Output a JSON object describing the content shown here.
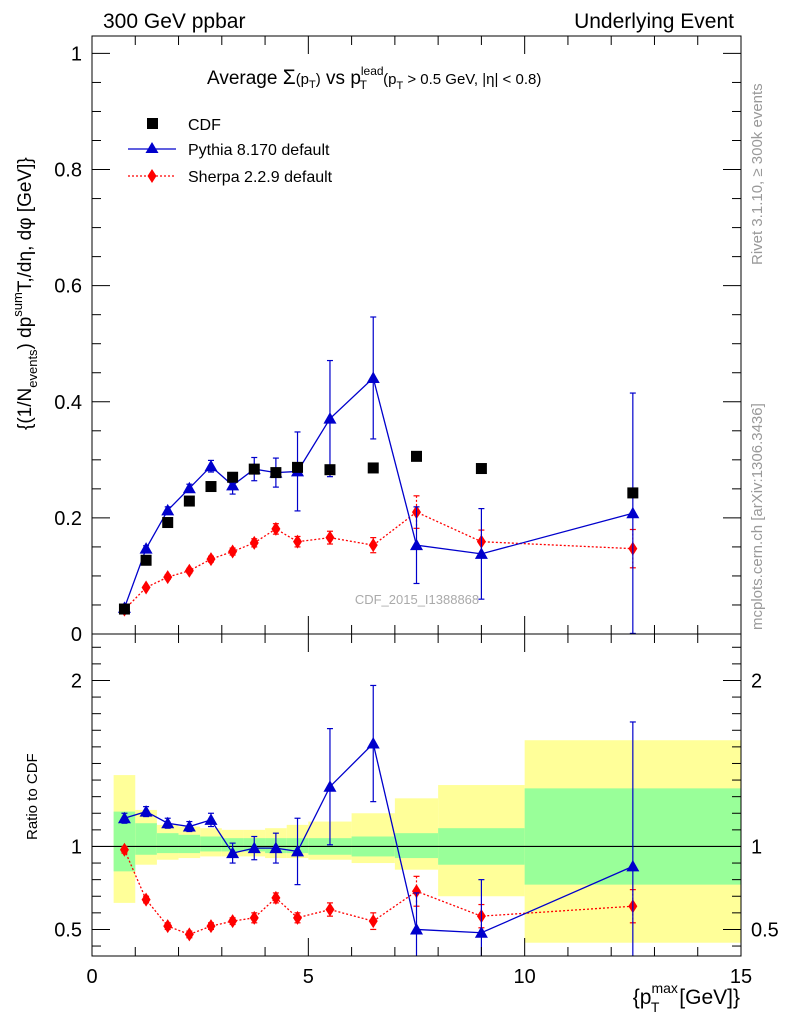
{
  "header": {
    "left_label": "300 GeV ppbar",
    "right_label": "Underlying Event"
  },
  "side_labels": {
    "rivet": "Rivet 3.1.10, ≥ 300k events",
    "mcplots": "mcplots.cern.ch [arXiv:1306.3436]"
  },
  "watermark": "CDF_2015_I1388868",
  "chart_data": [
    {
      "type": "scatter",
      "title": {
        "prefix": "Average ",
        "sigma": "Σ",
        "paren": "(p",
        "paren_sub": "T",
        "paren_end": ")",
        "vs": " vs p",
        "vs_sup": "lead",
        "vs_sub": "T",
        "cut1": " (p",
        "cut1_sub": "T",
        "cut2": " > 0.5 GeV, |η| < 0.8)"
      },
      "ylabel": {
        "part1": "{(1/N",
        "part1_sub": "events",
        "part2": ") dp",
        "part2_sup": "sum",
        "part3": "T,/dη, dφ [GeV]}"
      },
      "xlim": [
        0,
        15
      ],
      "ylim": [
        0,
        1.03
      ],
      "yticks": [
        0,
        0.2,
        0.4,
        0.6,
        0.8,
        1
      ],
      "ytick_labels": [
        "0",
        "0.2",
        "0.4",
        "0.6",
        "0.8",
        "1"
      ],
      "legend_position": "top-left",
      "series": [
        {
          "name": "CDF",
          "color": "#000000",
          "marker": "square",
          "x": [
            0.75,
            1.25,
            1.75,
            2.25,
            2.75,
            3.25,
            3.75,
            4.25,
            4.75,
            5.5,
            6.5,
            7.5,
            9.0,
            12.5
          ],
          "y": [
            0.043,
            0.127,
            0.192,
            0.229,
            0.254,
            0.27,
            0.284,
            0.278,
            0.287,
            0.283,
            0.286,
            0.306,
            0.285,
            0.243
          ]
        },
        {
          "name": "Pythia 8.170 default",
          "color": "#0000cc",
          "marker": "triangle",
          "line": "solid",
          "x": [
            0.75,
            1.25,
            1.75,
            2.25,
            2.75,
            3.25,
            3.75,
            4.25,
            4.75,
            5.5,
            6.5,
            7.5,
            9.0,
            12.5
          ],
          "y": [
            0.045,
            0.147,
            0.213,
            0.251,
            0.289,
            0.256,
            0.284,
            0.278,
            0.28,
            0.371,
            0.441,
            0.153,
            0.138,
            0.208
          ],
          "err": [
            0.003,
            0.005,
            0.006,
            0.007,
            0.01,
            0.015,
            0.02,
            0.025,
            0.068,
            0.1,
            0.105,
            0.066,
            0.078,
            0.207
          ]
        },
        {
          "name": "Sherpa 2.2.9 default",
          "color": "#ff0000",
          "marker": "diamond",
          "line": "dotted",
          "x": [
            0.75,
            1.25,
            1.75,
            2.25,
            2.75,
            3.25,
            3.75,
            4.25,
            4.75,
            5.5,
            6.5,
            7.5,
            9.0,
            12.5
          ],
          "y": [
            0.042,
            0.08,
            0.098,
            0.109,
            0.129,
            0.142,
            0.157,
            0.181,
            0.159,
            0.166,
            0.153,
            0.21,
            0.159,
            0.147
          ],
          "err": [
            0.002,
            0.003,
            0.004,
            0.004,
            0.005,
            0.006,
            0.007,
            0.009,
            0.009,
            0.011,
            0.013,
            0.028,
            0.02,
            0.033
          ]
        }
      ]
    },
    {
      "type": "scatter",
      "ylabel": "Ratio to CDF",
      "xlabel": {
        "part1": "{p",
        "part1_sup": "max",
        "part1_sub": "T",
        "part2": " [GeV]}"
      },
      "xlim": [
        0,
        15
      ],
      "ylim": [
        0.34,
        2.28
      ],
      "xticks": [
        0,
        5,
        10,
        15
      ],
      "xtick_labels": [
        "0",
        "5",
        "10",
        "15"
      ],
      "yticks": [
        0.5,
        1,
        2
      ],
      "ytick_labels": [
        "0.5",
        "1",
        "2"
      ],
      "reference_line": 1,
      "bands": {
        "bin_edges": [
          0.5,
          1.0,
          1.5,
          2.0,
          2.5,
          3.0,
          3.5,
          4.0,
          4.5,
          5.0,
          6.0,
          7.0,
          8.0,
          10.0,
          15.0
        ],
        "inner_color": "#99ff99",
        "outer_color": "#ffff99",
        "inner": [
          [
            0.85,
            1.21
          ],
          [
            0.95,
            1.14
          ],
          [
            0.96,
            1.08
          ],
          [
            0.96,
            1.07
          ],
          [
            0.97,
            1.06
          ],
          [
            0.97,
            1.05
          ],
          [
            0.97,
            1.05
          ],
          [
            0.96,
            1.05
          ],
          [
            0.96,
            1.05
          ],
          [
            0.95,
            1.05
          ],
          [
            0.94,
            1.06
          ],
          [
            0.93,
            1.08
          ],
          [
            0.89,
            1.11
          ],
          [
            0.77,
            1.35
          ]
        ],
        "outer": [
          [
            0.66,
            1.43
          ],
          [
            0.89,
            1.22
          ],
          [
            0.92,
            1.13
          ],
          [
            0.93,
            1.12
          ],
          [
            0.94,
            1.11
          ],
          [
            0.94,
            1.1
          ],
          [
            0.94,
            1.1
          ],
          [
            0.93,
            1.11
          ],
          [
            0.93,
            1.13
          ],
          [
            0.92,
            1.15
          ],
          [
            0.9,
            1.2
          ],
          [
            0.86,
            1.29
          ],
          [
            0.7,
            1.37
          ],
          [
            0.42,
            1.64
          ]
        ]
      },
      "series": [
        {
          "name": "Pythia 8.170 default",
          "color": "#0000cc",
          "marker": "triangle",
          "line": "solid",
          "x": [
            0.75,
            1.25,
            1.75,
            2.25,
            2.75,
            3.25,
            3.75,
            4.25,
            4.75,
            5.5,
            6.5,
            7.5,
            9.0,
            12.5
          ],
          "y": [
            1.17,
            1.21,
            1.14,
            1.12,
            1.16,
            0.96,
            0.99,
            0.99,
            0.97,
            1.36,
            1.62,
            0.5,
            0.48,
            0.88
          ],
          "err": [
            0.03,
            0.03,
            0.03,
            0.03,
            0.04,
            0.06,
            0.07,
            0.09,
            0.2,
            0.35,
            0.35,
            0.22,
            0.32,
            0.87
          ]
        },
        {
          "name": "Sherpa 2.2.9 default",
          "color": "#ff0000",
          "marker": "diamond",
          "line": "dotted",
          "x": [
            0.75,
            1.25,
            1.75,
            2.25,
            2.75,
            3.25,
            3.75,
            4.25,
            4.75,
            5.5,
            6.5,
            7.5,
            9.0,
            12.5
          ],
          "y": [
            0.98,
            0.68,
            0.52,
            0.47,
            0.52,
            0.55,
            0.57,
            0.69,
            0.57,
            0.62,
            0.55,
            0.73,
            0.58,
            0.64
          ],
          "err": [
            0.02,
            0.02,
            0.02,
            0.02,
            0.02,
            0.02,
            0.03,
            0.03,
            0.03,
            0.04,
            0.05,
            0.09,
            0.07,
            0.1
          ]
        }
      ]
    }
  ]
}
